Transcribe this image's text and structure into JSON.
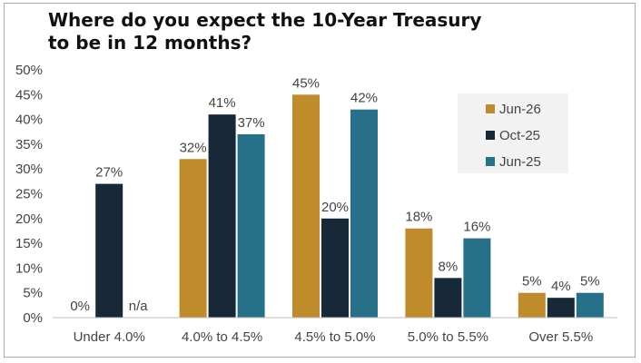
{
  "chart_data": {
    "type": "bar",
    "title_lines": [
      "Where do you expect the 10-Year Treasury",
      "to be in 12 months?"
    ],
    "categories": [
      "Under 4.0%",
      "4.0% to 4.5%",
      "4.5% to 5.0%",
      "5.0% to 5.5%",
      "Over 5.5%"
    ],
    "series": [
      {
        "name": "Jun-26",
        "color": "#c08b2a",
        "values": [
          0,
          32,
          45,
          18,
          5
        ],
        "labels": [
          "0%",
          "32%",
          "45%",
          "18%",
          "5%"
        ]
      },
      {
        "name": "Oct-25",
        "color": "#172938",
        "values": [
          27,
          41,
          20,
          8,
          4
        ],
        "labels": [
          "27%",
          "41%",
          "20%",
          "8%",
          "4%"
        ]
      },
      {
        "name": "Jun-25",
        "color": "#27708a",
        "values": [
          null,
          37,
          42,
          16,
          5
        ],
        "labels": [
          "n/a",
          "37%",
          "42%",
          "16%",
          "5%"
        ]
      }
    ],
    "y_ticks": [
      "0%",
      "5%",
      "10%",
      "15%",
      "20%",
      "25%",
      "30%",
      "35%",
      "40%",
      "45%",
      "50%"
    ],
    "ylim": [
      0,
      50
    ],
    "grid": false,
    "legend_position": "top-right",
    "legend_background": "#f2f2f2"
  }
}
